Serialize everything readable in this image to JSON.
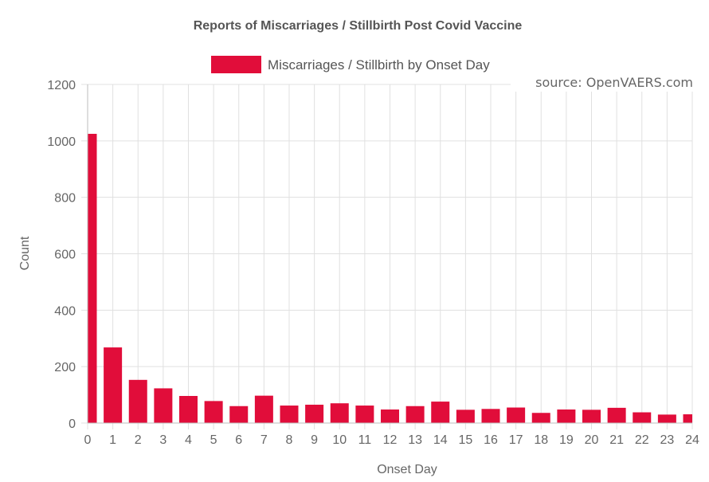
{
  "chart_data": {
    "type": "bar",
    "title": "Reports of Miscarriages / Stillbirth Post Covid Vaccine",
    "source_note": "source: OpenVAERS.com",
    "xlabel": "Onset Day",
    "ylabel": "Count",
    "ylim": [
      0,
      1200
    ],
    "yticks": [
      0,
      200,
      400,
      600,
      800,
      1000,
      1200
    ],
    "legend_position": "top-center",
    "bar_color": "#e10d3a",
    "grid": true,
    "categories": [
      "0",
      "1",
      "2",
      "3",
      "4",
      "5",
      "6",
      "7",
      "8",
      "9",
      "10",
      "11",
      "12",
      "13",
      "14",
      "15",
      "16",
      "17",
      "18",
      "19",
      "20",
      "21",
      "22",
      "23",
      "24"
    ],
    "series": [
      {
        "name": "Miscarriages / Stillbirth by Onset Day",
        "values": [
          1025,
          268,
          153,
          123,
          96,
          78,
          60,
          97,
          62,
          65,
          70,
          62,
          48,
          60,
          76,
          47,
          50,
          55,
          36,
          48,
          47,
          54,
          38,
          30,
          31
        ]
      }
    ]
  }
}
